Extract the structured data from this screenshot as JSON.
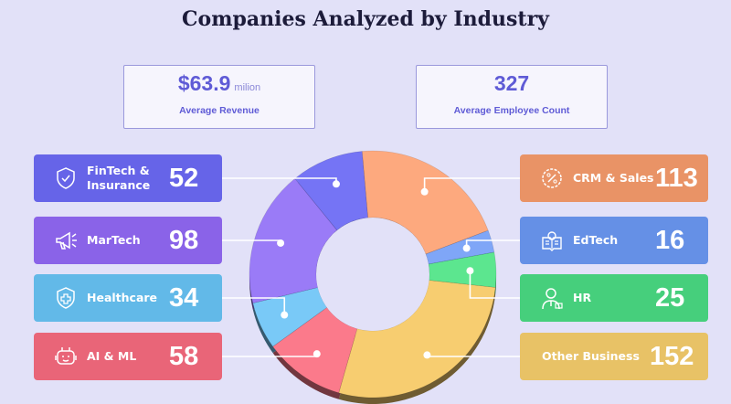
{
  "title": "Companies Analyzed by Industry",
  "stats": [
    {
      "value": "$63.9",
      "unit": "milion",
      "label": "Average Revenue"
    },
    {
      "value": "327",
      "unit": "",
      "label": "Average Employee Count"
    }
  ],
  "chart_data": {
    "type": "pie",
    "variant": "donut-3d",
    "title": "Companies Analyzed by Industry",
    "slices": [
      {
        "label": "CRM & Sales",
        "value": 113,
        "color": "#fda97e",
        "card_color": "#e99366",
        "icon": "discount-badge-icon",
        "side": "right"
      },
      {
        "label": "EdTech",
        "value": 16,
        "color": "#7fa6f7",
        "card_color": "#6590e6",
        "icon": "lightbulb-book-icon",
        "side": "right"
      },
      {
        "label": "HR",
        "value": 25,
        "color": "#5ce68f",
        "card_color": "#46cf7c",
        "icon": "person-icon",
        "side": "right"
      },
      {
        "label": "Other Business",
        "value": 152,
        "color": "#f7cd70",
        "card_color": "#e8c266",
        "icon": "",
        "side": "right"
      },
      {
        "label": "AI & ML",
        "value": 58,
        "color": "#fb7a8b",
        "card_color": "#e96578",
        "icon": "robot-icon",
        "side": "left"
      },
      {
        "label": "Healthcare",
        "value": 34,
        "color": "#79c9f7",
        "card_color": "#62b9e8",
        "icon": "medical-shield-icon",
        "side": "left"
      },
      {
        "label": "MarTech",
        "value": 98,
        "color": "#9a7bf7",
        "card_color": "#8a63e8",
        "icon": "megaphone-icon",
        "side": "left"
      },
      {
        "label": "FinTech & Insurance",
        "value": 52,
        "color": "#7574f5",
        "card_color": "#6664e8",
        "icon": "shield-check-icon",
        "side": "left"
      }
    ]
  }
}
